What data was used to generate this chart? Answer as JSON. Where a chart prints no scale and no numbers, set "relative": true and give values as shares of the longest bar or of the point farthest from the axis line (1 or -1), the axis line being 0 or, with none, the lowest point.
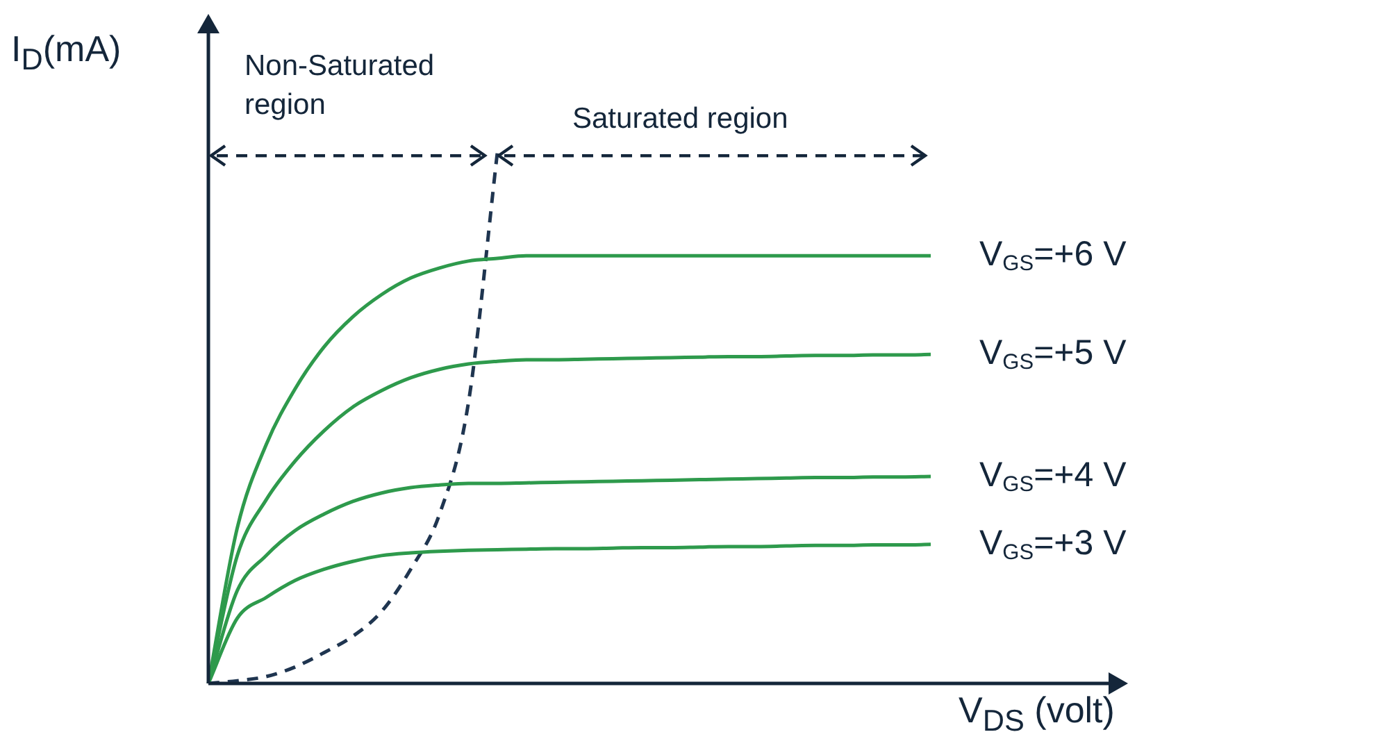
{
  "chart_data": {
    "type": "line",
    "relative": true,
    "xlabel": "V$_{DS}$ (volt)",
    "ylabel": "I$_{D}$(mA)",
    "marker": "none",
    "categories": [
      null,
      null,
      null,
      null,
      null,
      null,
      null,
      null,
      null,
      null,
      null,
      null,
      null,
      null,
      null,
      null,
      null,
      null,
      null,
      null,
      null,
      null,
      null,
      null,
      null,
      null
    ],
    "annotations": [
      "Non-Saturated region",
      "Saturated region"
    ],
    "series": [
      {
        "name": "V$_{GS}$=+6 V",
        "color": "#2e9a4c",
        "line_style": "solid",
        "values": [
          0,
          0.293,
          0.45,
          0.555,
          0.634,
          0.691,
          0.733,
          0.764,
          0.783,
          0.796,
          0.801,
          0.806,
          0.806,
          0.806,
          0.806,
          0.806,
          0.806,
          0.806,
          0.806,
          0.806,
          0.806,
          0.806,
          0.806,
          0.806,
          0.806,
          0.806
        ]
      },
      {
        "name": "V$_{GS}$=+5 V",
        "color": "#2e9a4c",
        "line_style": "solid",
        "values": [
          0,
          0.241,
          0.346,
          0.419,
          0.476,
          0.521,
          0.552,
          0.576,
          0.592,
          0.602,
          0.607,
          0.61,
          0.61,
          0.611,
          0.612,
          0.613,
          0.614,
          0.615,
          0.616,
          0.616,
          0.617,
          0.618,
          0.618,
          0.619,
          0.619,
          0.62
        ]
      },
      {
        "name": "V$_{GS}$=+4 V",
        "color": "#2e9a4c",
        "line_style": "solid",
        "values": [
          0,
          0.175,
          0.241,
          0.288,
          0.319,
          0.343,
          0.359,
          0.369,
          0.374,
          0.377,
          0.377,
          0.378,
          0.379,
          0.38,
          0.381,
          0.382,
          0.383,
          0.384,
          0.385,
          0.386,
          0.387,
          0.388,
          0.388,
          0.389,
          0.389,
          0.39
        ]
      },
      {
        "name": "V$_{GS}$=+3 V",
        "color": "#2e9a4c",
        "line_style": "solid",
        "values": [
          0,
          0.123,
          0.162,
          0.194,
          0.215,
          0.23,
          0.241,
          0.246,
          0.249,
          0.251,
          0.252,
          0.253,
          0.254,
          0.254,
          0.255,
          0.256,
          0.256,
          0.257,
          0.258,
          0.258,
          0.259,
          0.26,
          0.26,
          0.261,
          0.261,
          0.262
        ]
      },
      {
        "color": "#1f3550",
        "line_style": "dashed",
        "values": [
          0,
          0.005,
          0.013,
          0.031,
          0.058,
          0.089,
          0.136,
          0.215,
          0.319,
          0.529,
          1,
          null,
          null,
          null,
          null,
          null,
          null,
          null,
          null,
          null,
          null,
          null,
          null,
          null,
          null,
          null
        ]
      }
    ]
  }
}
